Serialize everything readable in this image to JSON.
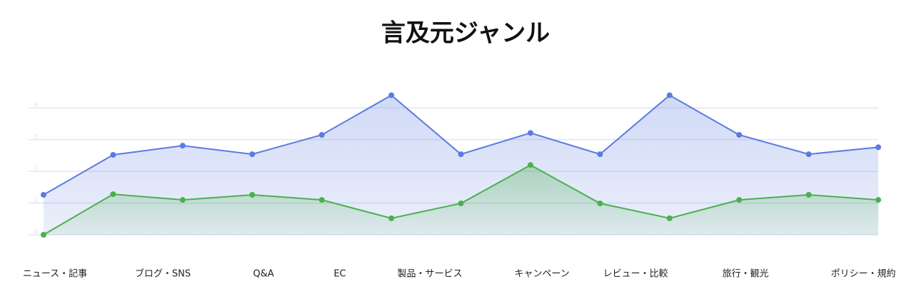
{
  "chart_data": {
    "type": "line",
    "title": "言及元ジャンル",
    "categories": [
      "ニュース・記事",
      "ブログ・SNS",
      null,
      "Q&A",
      "EC",
      "製品・サービス",
      null,
      "キャンペーン",
      "レビュー・比較",
      null,
      "旅行・観光",
      null,
      "ポリシー・規約"
    ],
    "series": [
      {
        "color": "#5b7be0",
        "values": [
          1.26,
          2.52,
          2.81,
          2.54,
          3.15,
          4.4,
          2.54,
          3.21,
          2.54,
          4.4,
          3.15,
          2.54,
          2.76
        ]
      },
      {
        "color": "#4caf50",
        "values": [
          0,
          1.28,
          1.1,
          1.26,
          1.1,
          0.52,
          0.99,
          2.2,
          0.99,
          0.52,
          1.1,
          1.26,
          1.1
        ]
      }
    ],
    "ylim": [
      0,
      4.5
    ],
    "yticks": [
      0,
      1,
      2,
      3,
      4
    ],
    "grid": true
  }
}
